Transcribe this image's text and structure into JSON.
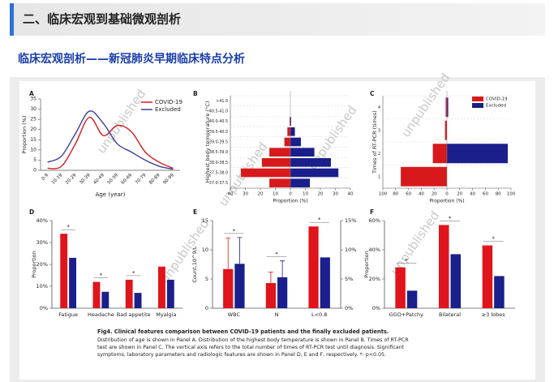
{
  "header": {
    "title": "二、临床宏观到基础微观剖析"
  },
  "subtitle": "临床宏观剖析——新冠肺炎早期临床特点分析",
  "watermark": "unpublished",
  "chart_data": [
    {
      "type": "line",
      "panel": "A",
      "xlabel": "Age (year)",
      "ylabel": "Proportion (%)",
      "legend": "upper right",
      "categories": [
        "0-9",
        "10-19",
        "20-29",
        "30-39",
        "40-49",
        "50-59",
        "60-69",
        "70-79",
        "80-89",
        "90-99"
      ],
      "series": [
        {
          "name": "COVID-19",
          "color": "#d7191c",
          "values": [
            1,
            2,
            13,
            26,
            17,
            22,
            19,
            9,
            4,
            1
          ]
        },
        {
          "name": "Excluded",
          "color": "#3b3f9a",
          "values": [
            4,
            7,
            18,
            29,
            23,
            13,
            9,
            5,
            2,
            0.5
          ]
        }
      ],
      "ylim": [
        0,
        35
      ],
      "yticks": [
        0,
        5,
        10,
        15,
        20,
        25,
        30,
        35
      ]
    },
    {
      "type": "hbar",
      "panel": "B",
      "xlabel": "Proportion (%)",
      "ylabel": "Highest body temperature (°C)",
      "categories": [
        ">41.0",
        "40.5-41.0",
        "40.0-40.5",
        "39.5-40.0",
        "39.0-39.5",
        "38.5-39.0",
        "38.0-38.5",
        "37.5-38.0",
        "37.0-37.5"
      ],
      "series": [
        {
          "color": "#d7191c",
          "values": [
            0,
            0,
            -0.5,
            -2,
            -4,
            -14,
            -19,
            -33,
            -14
          ]
        },
        {
          "color": "#1a1f8c",
          "values": [
            0,
            0,
            0.5,
            3,
            7,
            16,
            27,
            32,
            13
          ]
        }
      ],
      "xlim": [
        -40,
        40
      ],
      "xticks": [
        {
          "value": -40,
          "label": "40"
        },
        {
          "value": -30,
          "label": "30"
        },
        {
          "value": -20,
          "label": "20"
        },
        {
          "value": -10,
          "label": "10"
        },
        0,
        10,
        20,
        30,
        40
      ]
    },
    {
      "type": "hbar",
      "panel": "C",
      "xlabel": "Proportion (%)",
      "ylabel": "Times of RT-PCR (times)",
      "legend": "upper right",
      "categories": [
        "4",
        "3",
        "2",
        "1"
      ],
      "series": [
        {
          "name": "COVID-19",
          "color": "#d7191c",
          "values": [
            -2,
            -3,
            -22,
            -72
          ]
        },
        {
          "name": "Excluded",
          "color": "#1a1f8c",
          "values": [
            2,
            0,
            95,
            0
          ]
        }
      ],
      "xlim": [
        -100,
        100
      ],
      "xticks": [
        {
          "value": -100,
          "label": "100"
        },
        {
          "value": -80,
          "label": "80"
        },
        {
          "value": -60,
          "label": "60"
        },
        {
          "value": -40,
          "label": "40"
        },
        {
          "value": -20,
          "label": "20"
        },
        0,
        20,
        40,
        60,
        80,
        100
      ]
    },
    {
      "type": "bar",
      "panel": "D",
      "ylabel": "Proportion",
      "categories": [
        "Fatigue",
        "Headache",
        "Bad appetite",
        "Myalgia"
      ],
      "series": [
        {
          "color": "#e0141b",
          "values": [
            34,
            12,
            13,
            19
          ]
        },
        {
          "color": "#1a1f8c",
          "values": [
            23,
            7.5,
            7,
            13
          ]
        }
      ],
      "significance": [
        "*",
        "*",
        "*",
        null
      ],
      "ylim": [
        0,
        40
      ],
      "yticks": [
        {
          "value": 0,
          "label": "0%"
        },
        {
          "value": 10,
          "label": "10%"
        },
        {
          "value": 20,
          "label": "20%"
        },
        {
          "value": 30,
          "label": "30%"
        },
        {
          "value": 40,
          "label": "40%"
        }
      ]
    },
    {
      "type": "bar",
      "panel": "E",
      "ylabel": "Count,10^9/L",
      "categories": [
        "WBC",
        "N",
        "L<0.8"
      ],
      "series": [
        {
          "color": "#e0141b",
          "values": [
            6.7,
            4.3,
            null
          ],
          "errors": [
            5.3,
            1.9,
            null
          ]
        },
        {
          "color": "#1a1f8c",
          "values": [
            7.6,
            5.3,
            null
          ],
          "errors": [
            4.5,
            2.8,
            null
          ]
        },
        {
          "color": "#e0141b",
          "axis": "y2",
          "values": [
            null,
            null,
            14
          ]
        },
        {
          "color": "#1a1f8c",
          "axis": "y2",
          "values": [
            null,
            null,
            8.7
          ]
        }
      ],
      "significance": [
        "*",
        "*",
        "*"
      ],
      "ylim": [
        0,
        15
      ],
      "yticks": [
        0,
        5,
        10,
        15
      ],
      "y2lim": [
        0,
        15
      ],
      "y2ticks": [
        {
          "value": 0,
          "label": "0%"
        },
        {
          "value": 5,
          "label": "5%"
        },
        {
          "value": 10,
          "label": "10%"
        },
        {
          "value": 15,
          "label": "15%"
        }
      ]
    },
    {
      "type": "bar",
      "panel": "F",
      "ylabel": "Proportion",
      "categories": [
        "GGO+Patchy",
        "Bilateral",
        "≥3 lobes"
      ],
      "series": [
        {
          "color": "#e0141b",
          "values": [
            28,
            57,
            43
          ]
        },
        {
          "color": "#1a1f8c",
          "values": [
            12,
            37,
            22
          ]
        }
      ],
      "significance": [
        "*",
        "*",
        "*"
      ],
      "ylim": [
        0,
        60
      ],
      "yticks": [
        {
          "value": 0,
          "label": "0%"
        },
        {
          "value": 20,
          "label": "20%"
        },
        {
          "value": 40,
          "label": "40%"
        },
        {
          "value": 60,
          "label": "60%"
        }
      ]
    }
  ],
  "caption": {
    "title": "Fig4. Clinical features comparison between COVID-19 patients and the finally excluded patients.",
    "lines": [
      "Distribution of age is shown in Panel A. Distribution of the highest body temperature is shown in Panel B. Times of RT-PCR",
      "test are shown in Panel C. The vertical axis refers to the total number of times of RT-PCR test until diagnosis. Significant",
      "symptoms, laboratory parameters and radiologic features are shown in Panel D, E and F, respectively. *: p<0.05."
    ]
  }
}
